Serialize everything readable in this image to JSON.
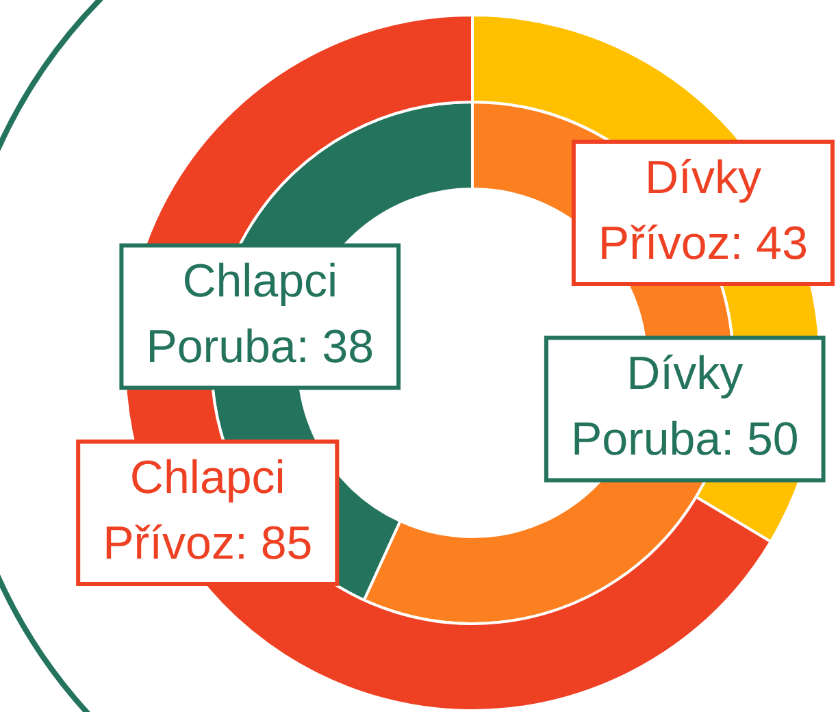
{
  "chart_data": {
    "type": "donut",
    "categories": [
      "Dívky",
      "Chlapci"
    ],
    "data_labels": true,
    "legend": false,
    "series": [
      {
        "values": [
          43,
          85
        ],
        "value_labels": [
          "Přívoz: 43",
          "Přívoz: 85"
        ],
        "colors": [
          "#ffc000",
          "#ee4023"
        ]
      },
      {
        "values": [
          50,
          38
        ],
        "value_labels": [
          "Poruba: 50",
          "Poruba: 38"
        ],
        "colors": [
          "#fd8020",
          "#24735c"
        ]
      }
    ]
  }
}
